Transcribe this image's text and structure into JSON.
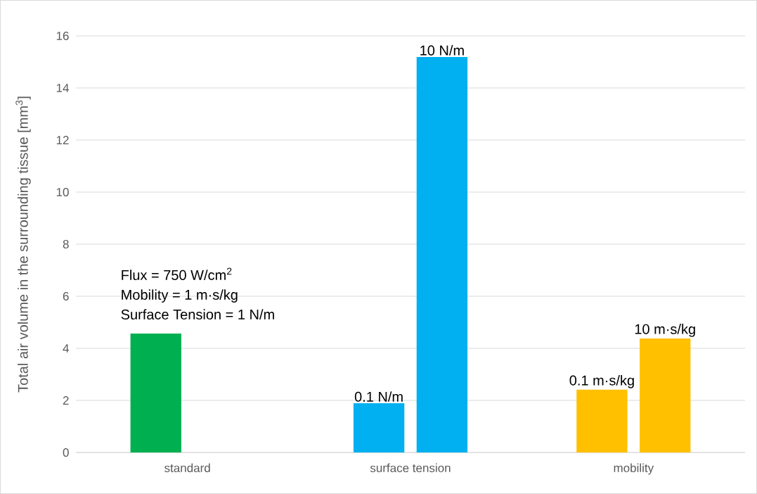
{
  "chart_data": {
    "type": "bar",
    "ylabel": "Total air volume in the surrounding tissue [mm$^{3}$]",
    "categories": [
      "standard",
      "surface tension",
      "mobility"
    ],
    "series": [
      {
        "colors": [
          "#00b050",
          "#00b0f0",
          "#ffc000"
        ],
        "values": [
          4.57,
          1.89,
          2.41
        ]
      },
      {
        "colors": [
          null,
          "#00b0f0",
          "#ffc000"
        ],
        "values": [
          null,
          15.19,
          4.38
        ]
      }
    ],
    "annotations": [
      "Flux =  750 W/cm$^{2}$",
      "Mobility = 1 m·s/kg",
      "Surface Tension = 1 N/m",
      "0.1 N/m",
      "10 N/m",
      "0.1 m·s/kg",
      "10 m·s/kg"
    ],
    "ylim": [
      0,
      16
    ],
    "yticks": [
      0,
      2,
      4,
      6,
      8,
      10,
      12,
      14,
      16
    ],
    "grid": "y"
  }
}
